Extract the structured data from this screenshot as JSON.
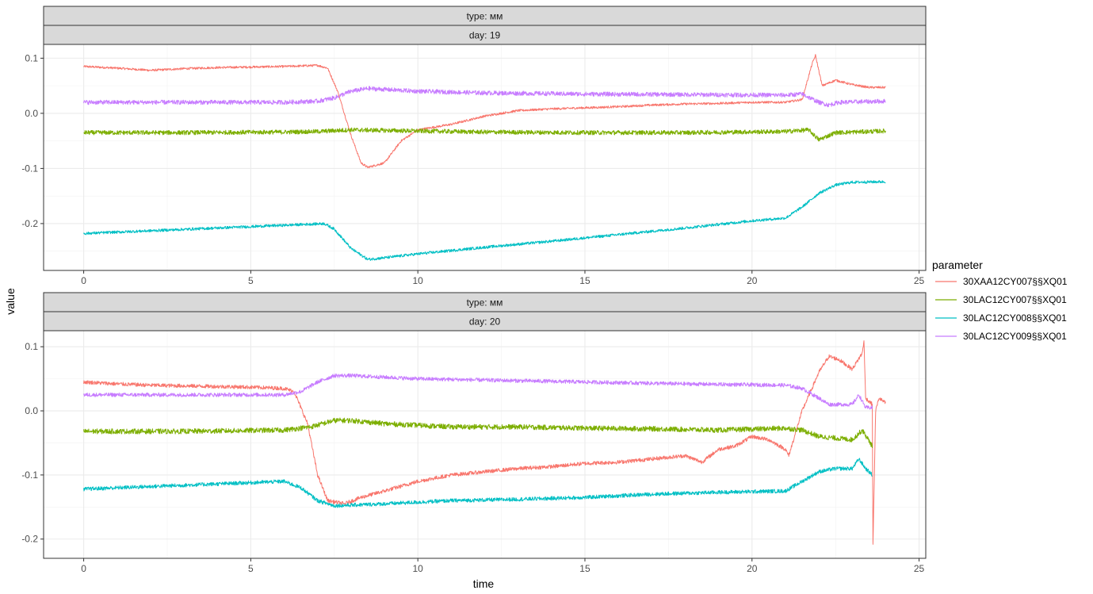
{
  "chart_data": {
    "type": "line",
    "xlabel": "time",
    "ylabel": "value",
    "legend": {
      "title": "parameter",
      "placement": "right",
      "entries": [
        {
          "name": "30XAA12CY007§§XQ01",
          "color": "#F8766D"
        },
        {
          "name": "30LAC12CY007§§XQ01",
          "color": "#7CAE00"
        },
        {
          "name": "30LAC12CY008§§XQ01",
          "color": "#00BFC4"
        },
        {
          "name": "30LAC12CY009§§XQ01",
          "color": "#C77CFF"
        }
      ]
    },
    "grid": true,
    "xlim": [
      -1.2,
      25.2
    ],
    "xticks": [
      0,
      5,
      10,
      15,
      20,
      25
    ],
    "panels": [
      {
        "strips": [
          "type: мм",
          "day: 19"
        ],
        "ylim": [
          -0.285,
          0.125
        ],
        "yticks": [
          0.1,
          0.0,
          -0.1,
          -0.2
        ],
        "ytick_labels": [
          "0.1",
          "0.0",
          "-0.1",
          "-0.2"
        ],
        "series": [
          {
            "name": "30XAA12CY007§§XQ01",
            "color": "#F8766D",
            "noise": 0.002,
            "points": [
              [
                0,
                0.085
              ],
              [
                1,
                0.082
              ],
              [
                2,
                0.078
              ],
              [
                3,
                0.081
              ],
              [
                4,
                0.083
              ],
              [
                5,
                0.084
              ],
              [
                6,
                0.085
              ],
              [
                7,
                0.087
              ],
              [
                7.3,
                0.082
              ],
              [
                7.6,
                0.04
              ],
              [
                8,
                -0.04
              ],
              [
                8.3,
                -0.09
              ],
              [
                8.5,
                -0.098
              ],
              [
                9,
                -0.09
              ],
              [
                9.5,
                -0.05
              ],
              [
                10,
                -0.03
              ],
              [
                11,
                -0.02
              ],
              [
                12,
                -0.005
              ],
              [
                13,
                0.005
              ],
              [
                14,
                0.008
              ],
              [
                15,
                0.01
              ],
              [
                16,
                0.012
              ],
              [
                17,
                0.015
              ],
              [
                18,
                0.017
              ],
              [
                19,
                0.018
              ],
              [
                20,
                0.02
              ],
              [
                21,
                0.02
              ],
              [
                21.5,
                0.025
              ],
              [
                21.8,
                0.09
              ],
              [
                21.9,
                0.105
              ],
              [
                22.1,
                0.05
              ],
              [
                22.5,
                0.06
              ],
              [
                23,
                0.052
              ],
              [
                23.5,
                0.047
              ],
              [
                24,
                0.047
              ]
            ]
          },
          {
            "name": "30LAC12CY007§§XQ01",
            "color": "#7CAE00",
            "noise": 0.004,
            "points": [
              [
                0,
                -0.035
              ],
              [
                3,
                -0.035
              ],
              [
                6,
                -0.034
              ],
              [
                7,
                -0.033
              ],
              [
                8,
                -0.03
              ],
              [
                10,
                -0.032
              ],
              [
                12,
                -0.034
              ],
              [
                15,
                -0.035
              ],
              [
                18,
                -0.035
              ],
              [
                21,
                -0.033
              ],
              [
                21.7,
                -0.03
              ],
              [
                22,
                -0.048
              ],
              [
                22.5,
                -0.035
              ],
              [
                24,
                -0.032
              ]
            ]
          },
          {
            "name": "30LAC12CY008§§XQ01",
            "color": "#00BFC4",
            "noise": 0.0025,
            "points": [
              [
                0,
                -0.218
              ],
              [
                2,
                -0.213
              ],
              [
                4,
                -0.208
              ],
              [
                6,
                -0.203
              ],
              [
                7.2,
                -0.2
              ],
              [
                7.5,
                -0.21
              ],
              [
                8,
                -0.245
              ],
              [
                8.5,
                -0.265
              ],
              [
                9,
                -0.262
              ],
              [
                10,
                -0.255
              ],
              [
                12,
                -0.243
              ],
              [
                14,
                -0.232
              ],
              [
                16,
                -0.22
              ],
              [
                18,
                -0.208
              ],
              [
                20,
                -0.195
              ],
              [
                21,
                -0.19
              ],
              [
                21.5,
                -0.17
              ],
              [
                22,
                -0.145
              ],
              [
                22.5,
                -0.13
              ],
              [
                23,
                -0.125
              ],
              [
                24,
                -0.124
              ]
            ]
          },
          {
            "name": "30LAC12CY009§§XQ01",
            "color": "#C77CFF",
            "noise": 0.004,
            "points": [
              [
                0,
                0.02
              ],
              [
                3,
                0.02
              ],
              [
                6,
                0.02
              ],
              [
                7,
                0.022
              ],
              [
                7.5,
                0.028
              ],
              [
                8,
                0.04
              ],
              [
                8.5,
                0.045
              ],
              [
                10,
                0.04
              ],
              [
                12,
                0.037
              ],
              [
                15,
                0.035
              ],
              [
                18,
                0.034
              ],
              [
                21,
                0.033
              ],
              [
                21.5,
                0.035
              ],
              [
                22,
                0.02
              ],
              [
                22.3,
                0.015
              ],
              [
                22.6,
                0.02
              ],
              [
                24,
                0.022
              ]
            ]
          }
        ]
      },
      {
        "strips": [
          "type: мм",
          "day: 20"
        ],
        "ylim": [
          -0.23,
          0.125
        ],
        "yticks": [
          0.1,
          0.0,
          -0.1,
          -0.2
        ],
        "ytick_labels": [
          "0.1",
          "0.0",
          "-0.1",
          "-0.2"
        ],
        "series": [
          {
            "name": "30XAA12CY007§§XQ01",
            "color": "#F8766D",
            "noise": 0.003,
            "points": [
              [
                0,
                0.045
              ],
              [
                1,
                0.042
              ],
              [
                2,
                0.04
              ],
              [
                4,
                0.038
              ],
              [
                5,
                0.037
              ],
              [
                6,
                0.035
              ],
              [
                6.3,
                0.03
              ],
              [
                6.7,
                -0.02
              ],
              [
                7,
                -0.1
              ],
              [
                7.3,
                -0.14
              ],
              [
                7.8,
                -0.145
              ],
              [
                8.3,
                -0.135
              ],
              [
                9,
                -0.125
              ],
              [
                10,
                -0.11
              ],
              [
                11,
                -0.1
              ],
              [
                12,
                -0.095
              ],
              [
                13,
                -0.09
              ],
              [
                14,
                -0.087
              ],
              [
                15,
                -0.082
              ],
              [
                16,
                -0.08
              ],
              [
                17,
                -0.075
              ],
              [
                18,
                -0.07
              ],
              [
                18.5,
                -0.08
              ],
              [
                19,
                -0.06
              ],
              [
                19.5,
                -0.055
              ],
              [
                20,
                -0.04
              ],
              [
                20.5,
                -0.045
              ],
              [
                21,
                -0.06
              ],
              [
                21.1,
                -0.07
              ],
              [
                21.5,
                0.0
              ],
              [
                22,
                0.06
              ],
              [
                22.3,
                0.085
              ],
              [
                22.6,
                0.08
              ],
              [
                23,
                0.065
              ],
              [
                23.3,
                0.09
              ],
              [
                23.35,
                0.11
              ],
              [
                23.4,
                0.02
              ],
              [
                23.6,
                0.01
              ],
              [
                23.62,
                -0.21
              ],
              [
                23.7,
                0.0
              ],
              [
                23.8,
                0.02
              ],
              [
                24,
                0.012
              ]
            ]
          },
          {
            "name": "30LAC12CY007§§XQ01",
            "color": "#7CAE00",
            "noise": 0.004,
            "points": [
              [
                0,
                -0.032
              ],
              [
                3,
                -0.032
              ],
              [
                6,
                -0.03
              ],
              [
                6.8,
                -0.025
              ],
              [
                7.5,
                -0.015
              ],
              [
                8,
                -0.015
              ],
              [
                9,
                -0.02
              ],
              [
                11,
                -0.025
              ],
              [
                13,
                -0.025
              ],
              [
                15,
                -0.027
              ],
              [
                17,
                -0.028
              ],
              [
                19,
                -0.03
              ],
              [
                21,
                -0.027
              ],
              [
                21.5,
                -0.03
              ],
              [
                22,
                -0.04
              ],
              [
                23,
                -0.045
              ],
              [
                23.3,
                -0.03
              ],
              [
                23.6,
                -0.055
              ]
            ]
          },
          {
            "name": "30LAC12CY008§§XQ01",
            "color": "#00BFC4",
            "noise": 0.003,
            "points": [
              [
                0,
                -0.122
              ],
              [
                2,
                -0.118
              ],
              [
                4,
                -0.114
              ],
              [
                5,
                -0.112
              ],
              [
                6,
                -0.11
              ],
              [
                6.5,
                -0.12
              ],
              [
                7,
                -0.14
              ],
              [
                7.5,
                -0.148
              ],
              [
                9,
                -0.145
              ],
              [
                11,
                -0.14
              ],
              [
                13,
                -0.138
              ],
              [
                15,
                -0.135
              ],
              [
                17,
                -0.13
              ],
              [
                19,
                -0.127
              ],
              [
                21,
                -0.125
              ],
              [
                21.5,
                -0.11
              ],
              [
                22,
                -0.095
              ],
              [
                22.5,
                -0.09
              ],
              [
                23,
                -0.09
              ],
              [
                23.2,
                -0.075
              ],
              [
                23.4,
                -0.09
              ],
              [
                23.6,
                -0.1
              ]
            ]
          },
          {
            "name": "30LAC12CY009§§XQ01",
            "color": "#C77CFF",
            "noise": 0.003,
            "points": [
              [
                0,
                0.025
              ],
              [
                3,
                0.025
              ],
              [
                5,
                0.025
              ],
              [
                6,
                0.025
              ],
              [
                6.5,
                0.03
              ],
              [
                7,
                0.045
              ],
              [
                7.5,
                0.055
              ],
              [
                8,
                0.055
              ],
              [
                10,
                0.05
              ],
              [
                12,
                0.048
              ],
              [
                15,
                0.045
              ],
              [
                18,
                0.042
              ],
              [
                21,
                0.04
              ],
              [
                21.5,
                0.035
              ],
              [
                22,
                0.02
              ],
              [
                22.3,
                0.01
              ],
              [
                23,
                0.01
              ],
              [
                23.2,
                0.025
              ],
              [
                23.4,
                0.005
              ],
              [
                23.6,
                0.005
              ]
            ]
          }
        ]
      }
    ]
  }
}
